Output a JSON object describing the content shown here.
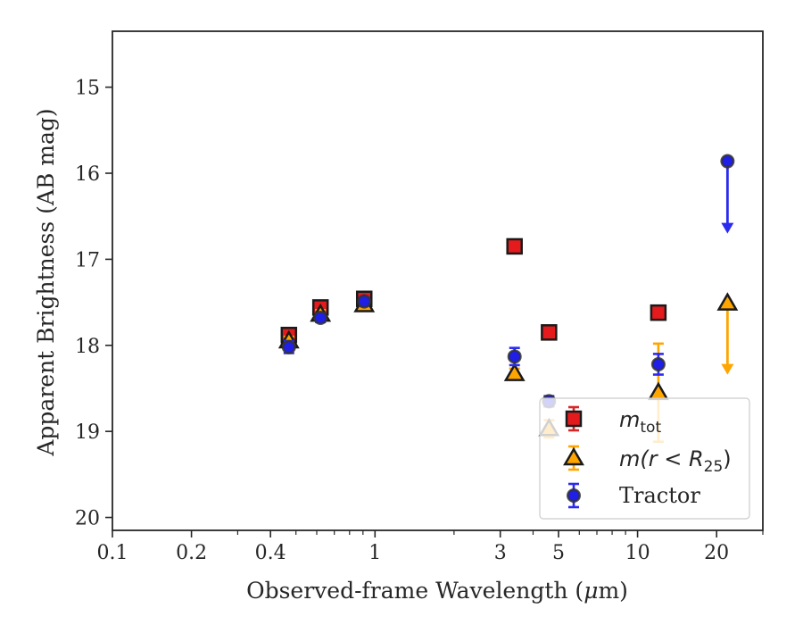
{
  "chart_data": {
    "type": "scatter",
    "xlabel_pre": "Observed-frame Wavelength (",
    "xlabel_mu": "μ",
    "xlabel_post": "m)",
    "ylabel": "Apparent Brightness (AB mag)",
    "xscale": "log",
    "xlim": [
      0.1,
      30
    ],
    "ylim": [
      20.15,
      14.35
    ],
    "x_ticks": [
      {
        "value": 0.1,
        "label": "0.1"
      },
      {
        "value": 0.2,
        "label": "0.2"
      },
      {
        "value": 0.4,
        "label": "0.4"
      },
      {
        "value": 1,
        "label": "1"
      },
      {
        "value": 3,
        "label": "3"
      },
      {
        "value": 5,
        "label": "5"
      },
      {
        "value": 10,
        "label": "10"
      },
      {
        "value": 20,
        "label": "20"
      }
    ],
    "y_ticks": [
      {
        "value": 15,
        "label": "15"
      },
      {
        "value": 16,
        "label": "16"
      },
      {
        "value": 17,
        "label": "17"
      },
      {
        "value": 18,
        "label": "18"
      },
      {
        "value": 19,
        "label": "19"
      },
      {
        "value": 20,
        "label": "20"
      }
    ],
    "legend_position": "lower-right",
    "series": [
      {
        "key": "mtot",
        "legend_main": "m",
        "legend_sub": "tot",
        "marker": "square",
        "fill": "#e41a1c",
        "errcolor": "#d62728",
        "points": [
          {
            "x": 0.47,
            "y": 17.88,
            "err": 0.08
          },
          {
            "x": 0.62,
            "y": 17.56,
            "err": 0.07
          },
          {
            "x": 0.91,
            "y": 17.46,
            "err": 0.06
          },
          {
            "x": 3.4,
            "y": 16.85,
            "err": 0.08
          },
          {
            "x": 4.6,
            "y": 17.85,
            "err": 0.07
          },
          {
            "x": 12.0,
            "y": 17.62,
            "err": 0.08
          }
        ]
      },
      {
        "key": "mr25",
        "legend_main": "m(r < R",
        "legend_sub": "25",
        "legend_close": ")",
        "marker": "triangle",
        "fill": "#ffa500",
        "errcolor": "#ffa500",
        "points": [
          {
            "x": 0.47,
            "y": 17.95,
            "err": 0.05
          },
          {
            "x": 0.62,
            "y": 17.64,
            "err": 0.05
          },
          {
            "x": 0.91,
            "y": 17.53,
            "err": 0.05
          },
          {
            "x": 3.4,
            "y": 18.33,
            "err": 0.06
          },
          {
            "x": 4.6,
            "y": 18.97,
            "err": 0.1
          },
          {
            "x": 12.0,
            "y": 18.55,
            "err": 0.57
          },
          {
            "x": 22.0,
            "y": 17.51,
            "upper_limit": true,
            "limit_to": 18.32
          }
        ]
      },
      {
        "key": "tractor",
        "legend_main": "Tractor",
        "marker": "circle",
        "fill": "#1f1fe6",
        "errcolor": "#2b2bf0",
        "points": [
          {
            "x": 0.47,
            "y": 18.02,
            "err": 0.07
          },
          {
            "x": 0.62,
            "y": 17.68,
            "err": 0.05
          },
          {
            "x": 0.91,
            "y": 17.49,
            "err": 0.05
          },
          {
            "x": 3.4,
            "y": 18.13,
            "err": 0.1
          },
          {
            "x": 4.6,
            "y": 18.65,
            "err": 0.06
          },
          {
            "x": 12.0,
            "y": 18.22,
            "err": 0.12
          },
          {
            "x": 22.0,
            "y": 15.86,
            "upper_limit": true,
            "limit_to": 16.68
          }
        ]
      }
    ]
  }
}
